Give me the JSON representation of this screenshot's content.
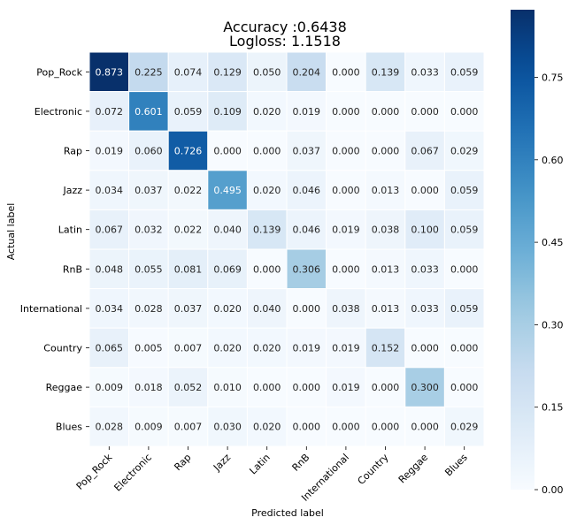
{
  "chart_data": {
    "type": "heatmap",
    "title_lines": [
      "Accuracy :0.6438",
      "Logloss: 1.1518"
    ],
    "xlabel": "Predicted label",
    "ylabel": "Actual label",
    "x_categories": [
      "Pop_Rock",
      "Electronic",
      "Rap",
      "Jazz",
      "Latin",
      "RnB",
      "International",
      "Country",
      "Reggae",
      "Blues"
    ],
    "y_categories": [
      "Pop_Rock",
      "Electronic",
      "Rap",
      "Jazz",
      "Latin",
      "RnB",
      "International",
      "Country",
      "Reggae",
      "Blues"
    ],
    "values": [
      [
        "0.873",
        "0.225",
        "0.074",
        "0.129",
        "0.050",
        "0.204",
        "0.000",
        "0.139",
        "0.033",
        "0.059"
      ],
      [
        "0.072",
        "0.601",
        "0.059",
        "0.109",
        "0.020",
        "0.019",
        "0.000",
        "0.000",
        "0.000",
        "0.000"
      ],
      [
        "0.019",
        "0.060",
        "0.726",
        "0.000",
        "0.000",
        "0.037",
        "0.000",
        "0.000",
        "0.067",
        "0.029"
      ],
      [
        "0.034",
        "0.037",
        "0.022",
        "0.495",
        "0.020",
        "0.046",
        "0.000",
        "0.013",
        "0.000",
        "0.059"
      ],
      [
        "0.067",
        "0.032",
        "0.022",
        "0.040",
        "0.139",
        "0.046",
        "0.019",
        "0.038",
        "0.100",
        "0.059"
      ],
      [
        "0.048",
        "0.055",
        "0.081",
        "0.069",
        "0.000",
        "0.306",
        "0.000",
        "0.013",
        "0.033",
        "0.000"
      ],
      [
        "0.034",
        "0.028",
        "0.037",
        "0.020",
        "0.040",
        "0.000",
        "0.038",
        "0.013",
        "0.033",
        "0.059"
      ],
      [
        "0.065",
        "0.005",
        "0.007",
        "0.020",
        "0.020",
        "0.019",
        "0.019",
        "0.152",
        "0.000",
        "0.000"
      ],
      [
        "0.009",
        "0.018",
        "0.052",
        "0.010",
        "0.000",
        "0.000",
        "0.019",
        "0.000",
        "0.300",
        "0.000"
      ],
      [
        "0.028",
        "0.009",
        "0.007",
        "0.030",
        "0.020",
        "0.000",
        "0.000",
        "0.000",
        "0.000",
        "0.029"
      ]
    ],
    "colorbar": {
      "vmin": 0.0,
      "vmax": 0.873,
      "ticks": [
        "0.00",
        "0.15",
        "0.30",
        "0.45",
        "0.60",
        "0.75"
      ],
      "colormap": "Blues"
    },
    "colors": {
      "low": "#f7fbff",
      "high": "#08306b",
      "text_light": "#ffffff",
      "text_dark": "#262626",
      "grid": "#ffffff"
    }
  }
}
